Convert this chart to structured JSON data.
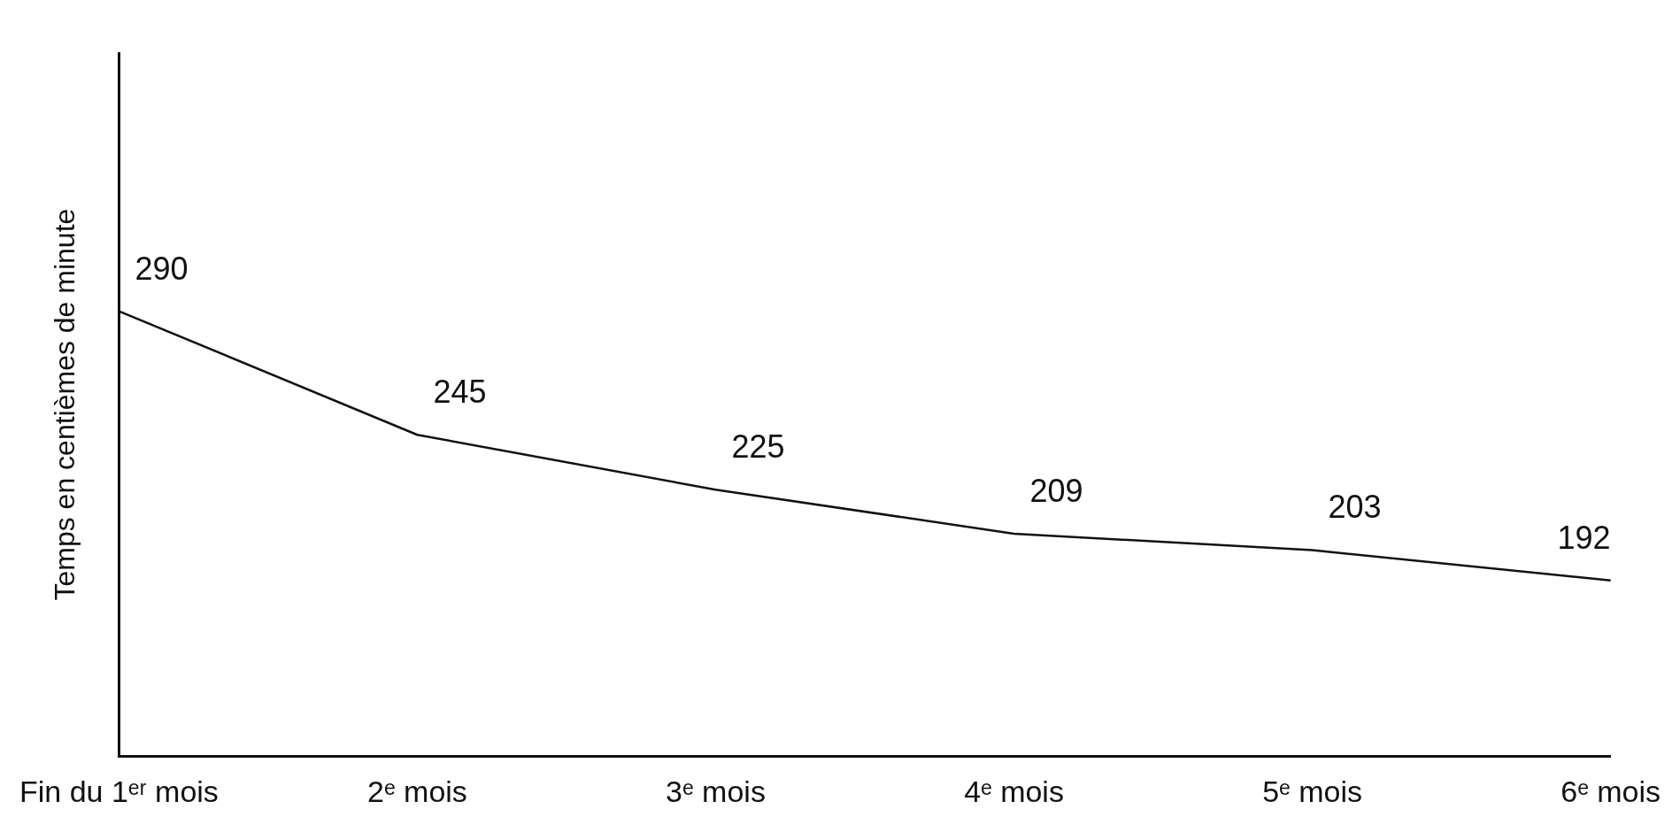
{
  "chart_data": {
    "type": "line",
    "ylabel": "Temps en centièmes de minute",
    "categories": [
      "Fin du 1ᵉʳ mois",
      "2ᵉ mois",
      "3ᵉ mois",
      "4ᵉ mois",
      "5ᵉ mois",
      "6ᵉ mois"
    ],
    "values": [
      290,
      245,
      225,
      209,
      203,
      192
    ],
    "color": "#111111",
    "ylim": [
      128,
      384
    ],
    "tick_labels": "x",
    "grid": false,
    "legend": false,
    "marker": "none",
    "line_style": "solid",
    "data_labels": true
  }
}
